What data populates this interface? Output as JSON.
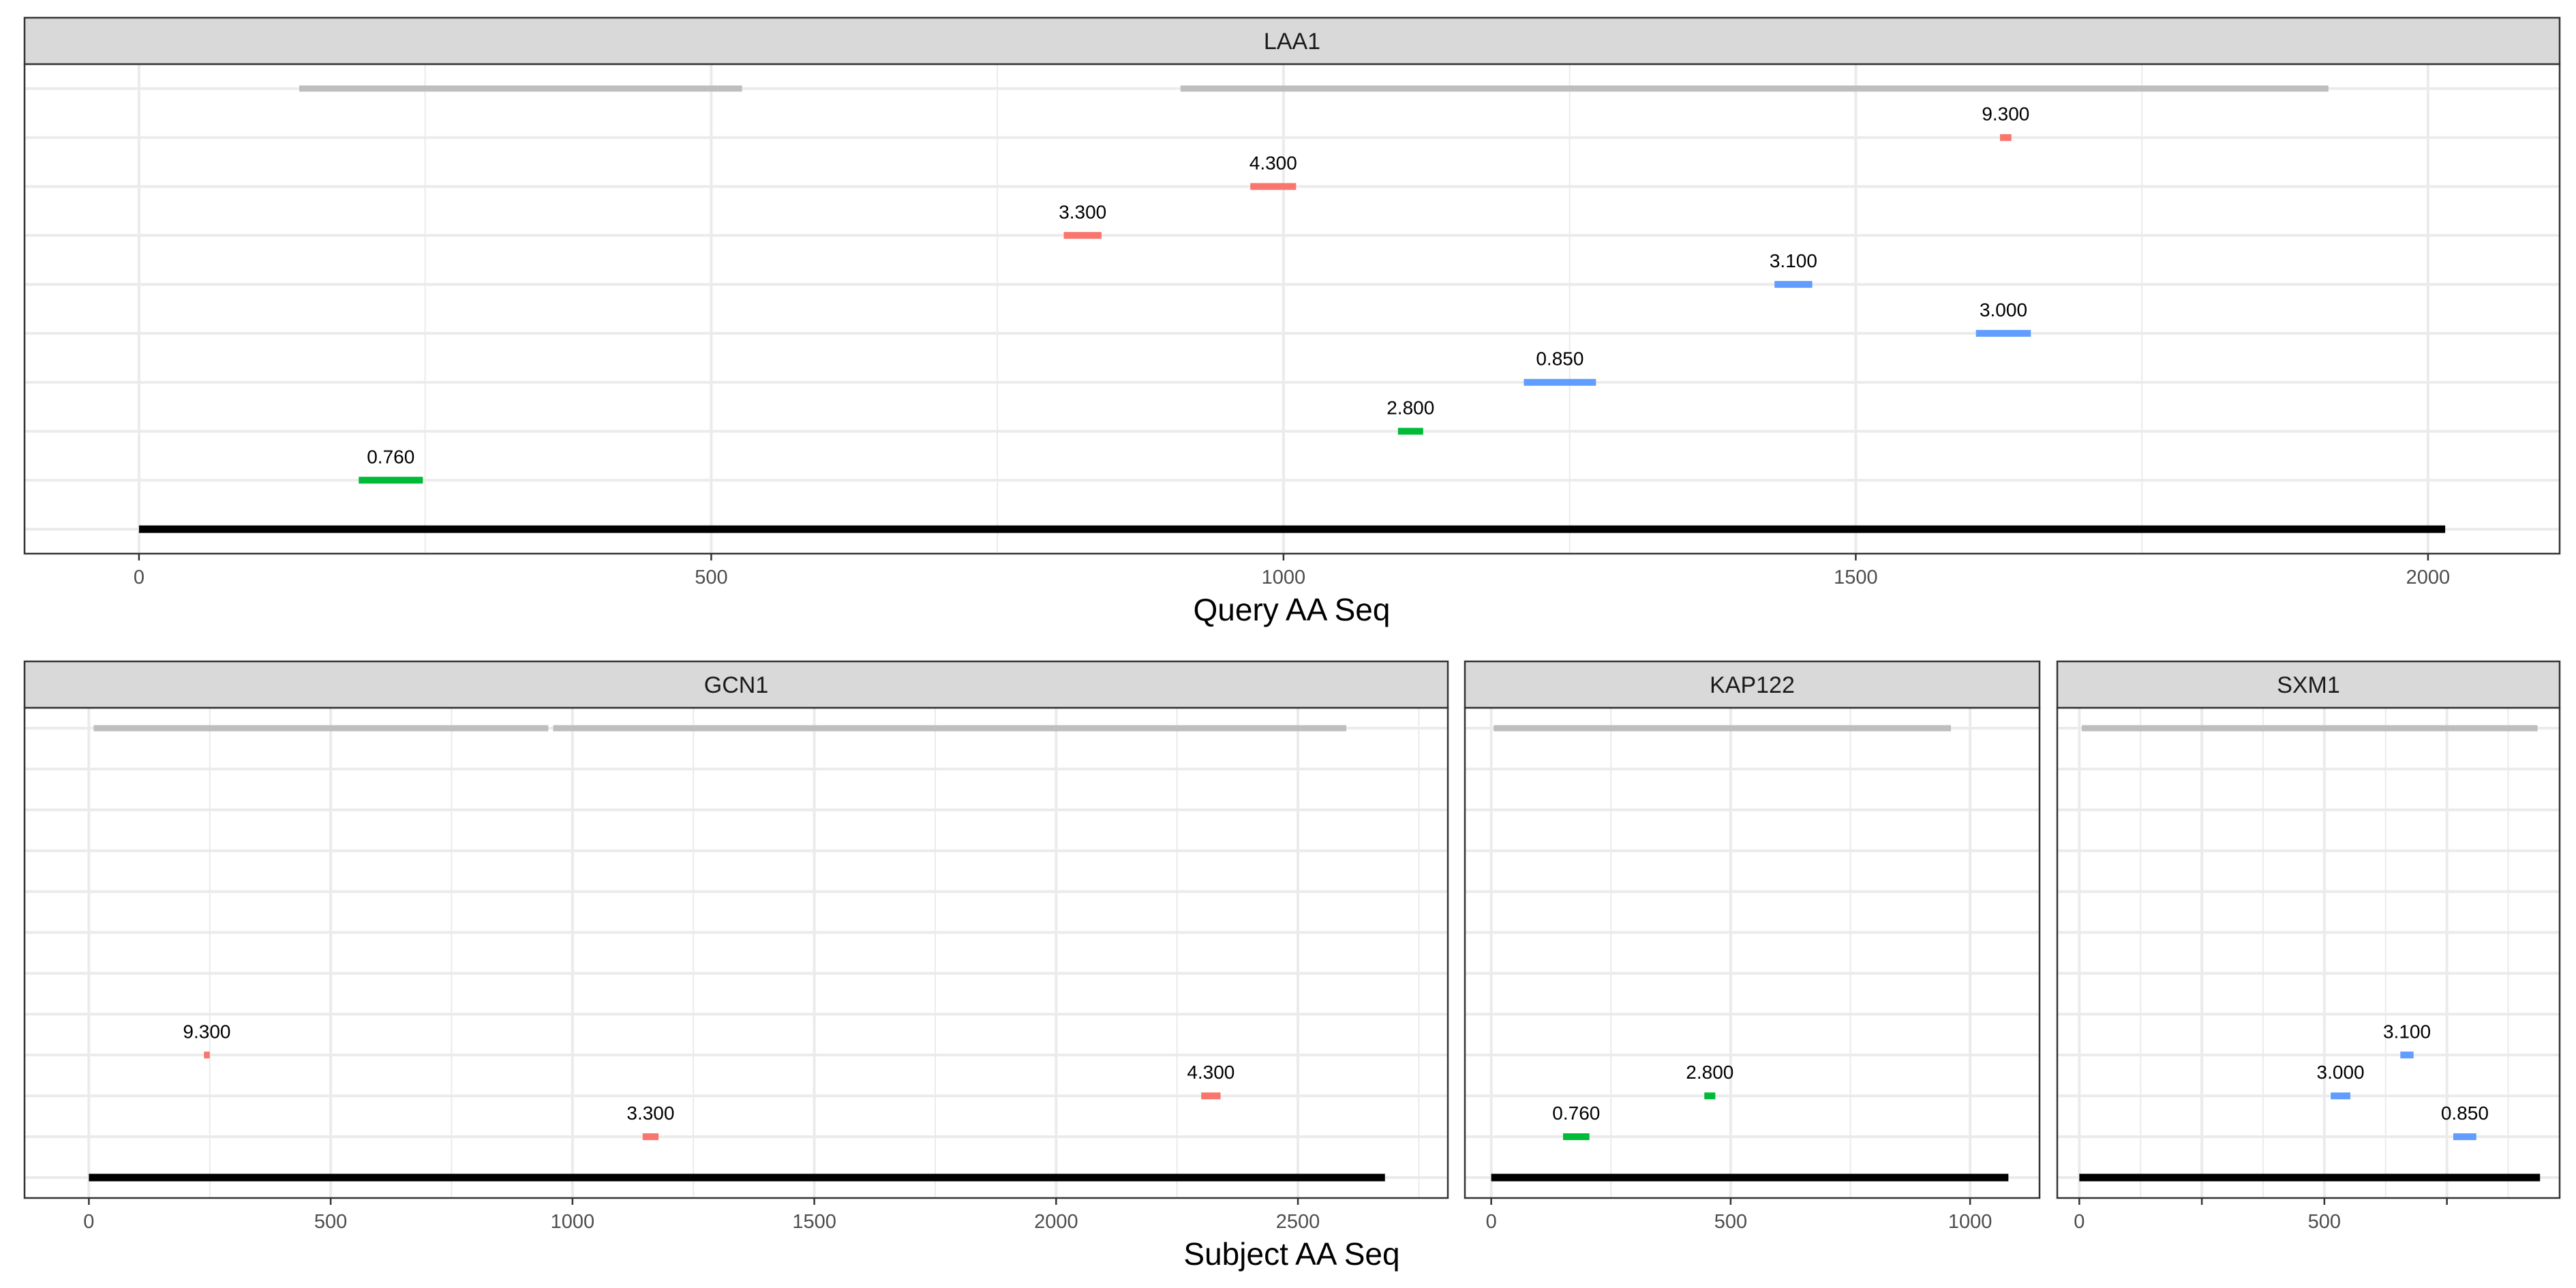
{
  "figure": {
    "top_axis_title": "Query AA Seq",
    "bottom_axis_title": "Subject AA Seq"
  },
  "colors": {
    "red": "#F8766D",
    "green": "#00BA38",
    "blue": "#619CFF",
    "gray": "#BEBEBE",
    "black": "#000000",
    "strip_bg": "#D9D9D9",
    "grid": "#EBEBEB"
  },
  "chart_data": [
    {
      "type": "segment",
      "panel": "LAA1",
      "axis": "Query AA Seq",
      "xlim": [
        -100,
        2115
      ],
      "ylim": [
        0.5,
        10.5
      ],
      "x_ticks": [
        0,
        500,
        1000,
        1500,
        2000
      ],
      "x_tick_labels": [
        "0",
        "500",
        "1000",
        "1500",
        "2000"
      ],
      "y_rows": 10,
      "backbone": {
        "row": 1,
        "start": 0,
        "end": 2015,
        "color": "black"
      },
      "domains": [
        {
          "row": 10,
          "start": 140,
          "end": 527,
          "color": "gray"
        },
        {
          "row": 10,
          "start": 910,
          "end": 1913,
          "color": "gray"
        }
      ],
      "hits": [
        {
          "label": "9.300",
          "row": 9,
          "start": 1626,
          "end": 1636,
          "color": "red"
        },
        {
          "label": "4.300",
          "row": 8,
          "start": 971,
          "end": 1011,
          "color": "red"
        },
        {
          "label": "3.300",
          "row": 7,
          "start": 808,
          "end": 841,
          "color": "red"
        },
        {
          "label": "3.100",
          "row": 6,
          "start": 1429,
          "end": 1462,
          "color": "blue"
        },
        {
          "label": "3.000",
          "row": 5,
          "start": 1605,
          "end": 1653,
          "color": "blue"
        },
        {
          "label": "0.850",
          "row": 4,
          "start": 1210,
          "end": 1273,
          "color": "blue"
        },
        {
          "label": "2.800",
          "row": 3,
          "start": 1100,
          "end": 1122,
          "color": "green"
        },
        {
          "label": "0.760",
          "row": 2,
          "start": 192,
          "end": 248,
          "color": "green"
        }
      ]
    },
    {
      "type": "segment",
      "panel": "GCN1",
      "axis": "Subject AA Seq",
      "xlim": [
        -133,
        2810
      ],
      "ylim": [
        0.5,
        12.5
      ],
      "x_ticks": [
        0,
        500,
        1000,
        1500,
        2000,
        2500
      ],
      "x_tick_labels": [
        "0",
        "500",
        "1000",
        "1500",
        "2000",
        "2500"
      ],
      "y_rows": 12,
      "backbone": {
        "row": 1,
        "start": 0,
        "end": 2680,
        "color": "black"
      },
      "domains": [
        {
          "row": 12,
          "start": 10,
          "end": 950,
          "color": "gray"
        },
        {
          "row": 12,
          "start": 960,
          "end": 2600,
          "color": "gray"
        }
      ],
      "hits": [
        {
          "label": "9.300",
          "row": 4,
          "start": 238,
          "end": 250,
          "color": "red"
        },
        {
          "label": "4.300",
          "row": 3,
          "start": 2300,
          "end": 2340,
          "color": "red"
        },
        {
          "label": "3.300",
          "row": 2,
          "start": 1145,
          "end": 1178,
          "color": "red"
        }
      ]
    },
    {
      "type": "segment",
      "panel": "KAP122",
      "axis": "Subject AA Seq",
      "xlim": [
        -55,
        1145
      ],
      "ylim": [
        0.5,
        12.5
      ],
      "x_ticks": [
        0,
        500,
        1000
      ],
      "x_tick_labels": [
        "0",
        "500",
        "1000"
      ],
      "y_rows": 12,
      "backbone": {
        "row": 1,
        "start": 0,
        "end": 1080,
        "color": "black"
      },
      "domains": [
        {
          "row": 12,
          "start": 5,
          "end": 960,
          "color": "gray"
        }
      ],
      "hits": [
        {
          "label": "2.800",
          "row": 3,
          "start": 445,
          "end": 468,
          "color": "green"
        },
        {
          "label": "0.760",
          "row": 2,
          "start": 150,
          "end": 205,
          "color": "green"
        }
      ]
    },
    {
      "type": "segment",
      "panel": "SXM1",
      "axis": "Subject AA Seq",
      "xlim": [
        -45,
        980
      ],
      "ylim": [
        0.5,
        12.5
      ],
      "x_ticks": [
        0,
        250,
        500,
        750
      ],
      "x_tick_labels": [
        "0",
        "",
        "500",
        ""
      ],
      "y_rows": 12,
      "backbone": {
        "row": 1,
        "start": 0,
        "end": 940,
        "color": "black"
      },
      "domains": [
        {
          "row": 12,
          "start": 5,
          "end": 935,
          "color": "gray"
        }
      ],
      "hits": [
        {
          "label": "3.100",
          "row": 4,
          "start": 655,
          "end": 682,
          "color": "blue"
        },
        {
          "label": "3.000",
          "row": 3,
          "start": 513,
          "end": 553,
          "color": "blue"
        },
        {
          "label": "0.850",
          "row": 2,
          "start": 763,
          "end": 810,
          "color": "blue"
        }
      ]
    }
  ]
}
